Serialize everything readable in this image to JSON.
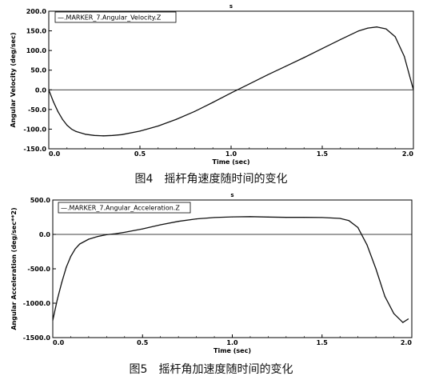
{
  "chart_data": [
    {
      "type": "line",
      "title": "s",
      "xlabel": "Time (sec)",
      "ylabel": "Angular Velocity (deg/sec)",
      "legend": "—.MARKER_7.Angular_Velocity.Z",
      "legend_position": "top-left",
      "caption": "图4　摇杆角速度随时间的变化",
      "xlim": [
        0.0,
        2.0
      ],
      "ylim": [
        -150.0,
        200.0
      ],
      "xticks": [
        "0.0",
        "0.5",
        "1.0",
        "1.5",
        "2.0"
      ],
      "yticks": [
        "-150.0",
        "-100.0",
        "-50.0",
        "0.0",
        "50.0",
        "100.0",
        "150.0",
        "200.0"
      ],
      "grid": false,
      "series": [
        {
          "name": ".MARKER_7.Angular_Velocity.Z",
          "x": [
            0.0,
            0.025,
            0.05,
            0.075,
            0.1,
            0.125,
            0.15,
            0.2,
            0.25,
            0.3,
            0.35,
            0.4,
            0.5,
            0.6,
            0.7,
            0.8,
            0.9,
            1.0,
            1.1,
            1.2,
            1.3,
            1.4,
            1.5,
            1.6,
            1.7,
            1.75,
            1.8,
            1.85,
            1.9,
            1.95,
            2.0
          ],
          "y": [
            0.0,
            -30.0,
            -55.0,
            -75.0,
            -90.0,
            -100.0,
            -106.0,
            -113.0,
            -116.0,
            -117.0,
            -116.0,
            -114.0,
            -105.0,
            -92.0,
            -75.0,
            -55.0,
            -32.0,
            -8.0,
            15.0,
            38.0,
            60.0,
            82.0,
            105.0,
            128.0,
            150.0,
            157.0,
            160.0,
            155.0,
            135.0,
            85.0,
            0.0
          ]
        }
      ],
      "baseline": 0.0
    },
    {
      "type": "line",
      "title": "s",
      "xlabel": "Time (sec)",
      "ylabel": "Angular Acceleration (deg/sec**2)",
      "legend": "—.MARKER_7.Angular_Acceleration.Z",
      "legend_position": "top-left",
      "caption": "图5　摇杆角加速度随时间的变化",
      "xlim": [
        0.0,
        2.0
      ],
      "ylim": [
        -1500.0,
        500.0
      ],
      "xticks": [
        "0.0",
        "0.5",
        "1.0",
        "1.5",
        "2.0"
      ],
      "yticks": [
        "-1500.0",
        "-1000.0",
        "-500.0",
        "0.0",
        "500.0"
      ],
      "grid": false,
      "series": [
        {
          "name": ".MARKER_7.Angular_Acceleration.Z",
          "x": [
            0.0,
            0.025,
            0.05,
            0.075,
            0.1,
            0.125,
            0.15,
            0.2,
            0.25,
            0.3,
            0.35,
            0.4,
            0.5,
            0.6,
            0.7,
            0.8,
            0.9,
            1.0,
            1.1,
            1.2,
            1.3,
            1.4,
            1.5,
            1.6,
            1.65,
            1.7,
            1.75,
            1.8,
            1.85,
            1.9,
            1.95,
            1.98
          ],
          "y": [
            -1250.0,
            -950.0,
            -700.0,
            -480.0,
            -320.0,
            -210.0,
            -140.0,
            -70.0,
            -30.0,
            -5.0,
            10.0,
            30.0,
            80.0,
            140.0,
            190.0,
            225.0,
            245.0,
            255.0,
            258.0,
            252.0,
            248.0,
            248.0,
            245.0,
            232.0,
            200.0,
            100.0,
            -150.0,
            -500.0,
            -900.0,
            -1150.0,
            -1280.0,
            -1230.0
          ]
        }
      ],
      "baseline": 0.0
    }
  ]
}
